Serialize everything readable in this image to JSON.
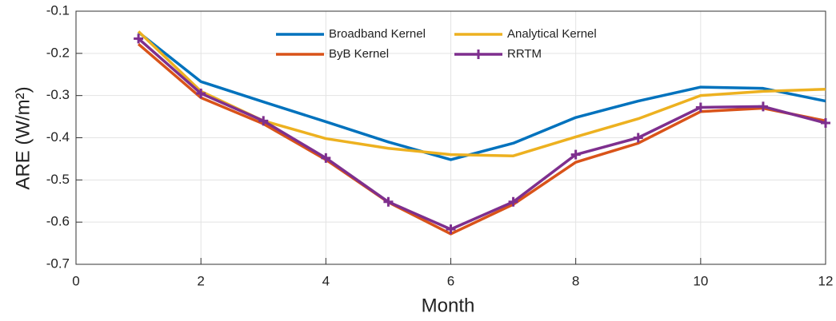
{
  "chart_data": {
    "type": "line",
    "x_label": "Month",
    "y_label": "ARE (W/m²)",
    "x": [
      1,
      2,
      3,
      4,
      5,
      6,
      7,
      8,
      9,
      10,
      11,
      12
    ],
    "series": [
      {
        "name": "Broadband Kernel",
        "color": "#0072bd",
        "values": [
          -0.15,
          -0.267,
          -0.315,
          -0.362,
          -0.41,
          -0.452,
          -0.413,
          -0.352,
          -0.313,
          -0.28,
          -0.283,
          -0.313
        ]
      },
      {
        "name": "Analytical Kernel",
        "color": "#edb120",
        "values": [
          -0.148,
          -0.29,
          -0.36,
          -0.402,
          -0.425,
          -0.44,
          -0.443,
          -0.398,
          -0.355,
          -0.3,
          -0.29,
          -0.285
        ]
      },
      {
        "name": "ByB Kernel",
        "color": "#d95319",
        "values": [
          -0.178,
          -0.305,
          -0.367,
          -0.452,
          -0.553,
          -0.628,
          -0.558,
          -0.458,
          -0.413,
          -0.338,
          -0.33,
          -0.36
        ]
      },
      {
        "name": "RRTM",
        "color": "#7e2f8e",
        "marker": "+",
        "values": [
          -0.165,
          -0.295,
          -0.36,
          -0.448,
          -0.552,
          -0.617,
          -0.552,
          -0.44,
          -0.4,
          -0.328,
          -0.326,
          -0.365
        ]
      }
    ],
    "xlim": [
      0,
      12
    ],
    "xticks": [
      0,
      2,
      4,
      6,
      8,
      10,
      12
    ],
    "ylim": [
      -0.7,
      -0.1
    ],
    "yticks": [
      -0.7,
      -0.6,
      -0.5,
      -0.4,
      -0.3,
      -0.2,
      -0.1
    ],
    "grid": true,
    "legend": "top"
  }
}
